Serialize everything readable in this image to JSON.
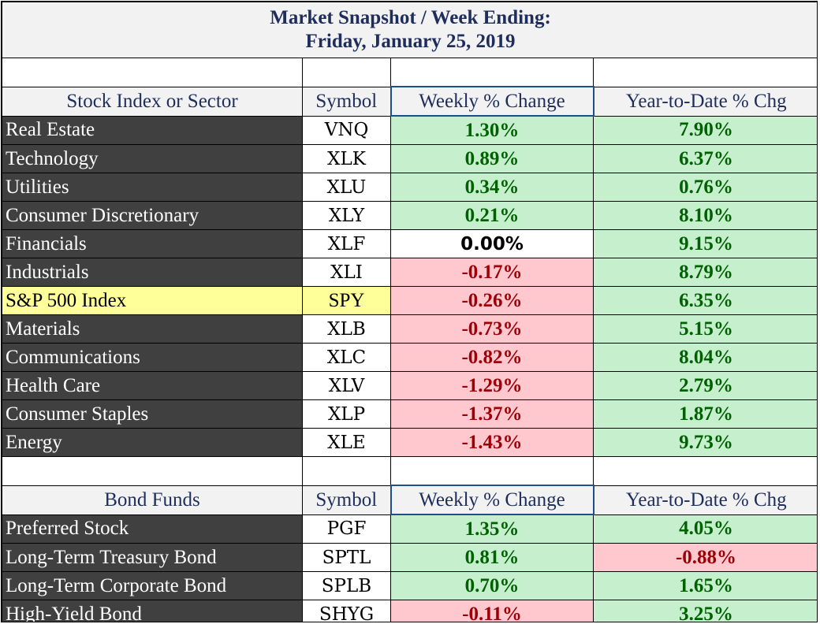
{
  "title": {
    "line1": "Market Snapshot / Week Ending:",
    "line2": "Friday, January 25, 2019"
  },
  "stocks": {
    "headers": [
      "Stock Index or Sector",
      "Symbol",
      "Weekly % Change",
      "Year-to-Date % Chg"
    ],
    "rows": [
      {
        "name": "Real Estate",
        "symbol": "VNQ",
        "weekly": "1.30%",
        "ytd": "7.90%"
      },
      {
        "name": "Technology",
        "symbol": "XLK",
        "weekly": "0.89%",
        "ytd": "6.37%"
      },
      {
        "name": "Utilities",
        "symbol": "XLU",
        "weekly": "0.34%",
        "ytd": "0.76%"
      },
      {
        "name": "Consumer Discretionary",
        "symbol": "XLY",
        "weekly": "0.21%",
        "ytd": "8.10%"
      },
      {
        "name": "Financials",
        "symbol": "XLF",
        "weekly": "0.00%",
        "ytd": "9.15%"
      },
      {
        "name": "Industrials",
        "symbol": "XLI",
        "weekly": "-0.17%",
        "ytd": "8.79%"
      },
      {
        "name": "S&P 500 Index",
        "symbol": "SPY",
        "weekly": "-0.26%",
        "ytd": "6.35%",
        "highlight": true
      },
      {
        "name": "Materials",
        "symbol": "XLB",
        "weekly": "-0.73%",
        "ytd": "5.15%"
      },
      {
        "name": "Communications",
        "symbol": "XLC",
        "weekly": "-0.82%",
        "ytd": "8.04%"
      },
      {
        "name": "Health Care",
        "symbol": "XLV",
        "weekly": "-1.29%",
        "ytd": "2.79%"
      },
      {
        "name": "Consumer Staples",
        "symbol": "XLP",
        "weekly": "-1.37%",
        "ytd": "1.87%"
      },
      {
        "name": "Energy",
        "symbol": "XLE",
        "weekly": "-1.43%",
        "ytd": "9.73%"
      }
    ]
  },
  "bonds": {
    "headers": [
      "Bond Funds",
      "Symbol",
      "Weekly % Change",
      "Year-to-Date % Chg"
    ],
    "rows": [
      {
        "name": "Preferred Stock",
        "symbol": "PGF",
        "weekly": "1.35%",
        "ytd": "4.05%"
      },
      {
        "name": "Long-Term Treasury Bond",
        "symbol": "SPTL",
        "weekly": "0.81%",
        "ytd": "-0.88%"
      },
      {
        "name": "Long-Term Corporate Bond",
        "symbol": "SPLB",
        "weekly": "0.70%",
        "ytd": "1.65%"
      },
      {
        "name": "High-Yield Bond",
        "symbol": "SHYG",
        "weekly": "-0.11%",
        "ytd": "3.25%"
      }
    ]
  },
  "colors": {
    "positive_fill": "#c6efce",
    "positive_text": "#006100",
    "negative_fill": "#ffc7ce",
    "negative_text": "#9c0006",
    "name_fill": "#404040",
    "highlight_fill": "#ffff99"
  }
}
